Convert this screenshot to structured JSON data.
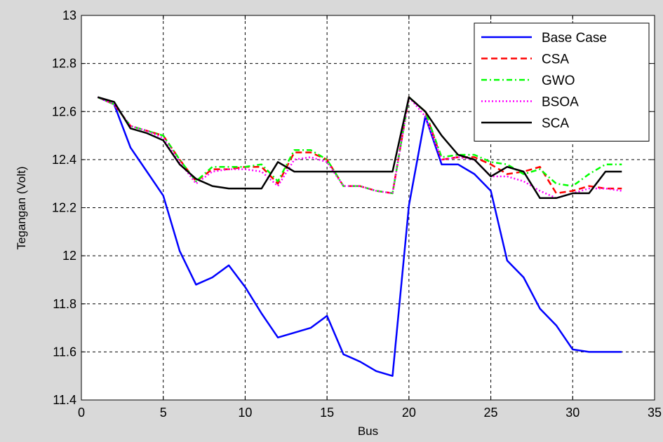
{
  "chart_data": {
    "type": "line",
    "xlabel": "Bus",
    "ylabel": "Tegangan (Volt)",
    "xlim": [
      0,
      35
    ],
    "ylim": [
      11.4,
      13
    ],
    "xticks": [
      0,
      5,
      10,
      15,
      20,
      25,
      30,
      35
    ],
    "yticks": [
      11.4,
      11.6,
      11.8,
      12,
      12.2,
      12.4,
      12.6,
      12.8,
      13
    ],
    "ytick_labels": [
      "11.4",
      "11.6",
      "11.8",
      "12",
      "12.2",
      "12.4",
      "12.6",
      "12.8",
      "13"
    ],
    "grid": true,
    "legend_position": "top-right",
    "x": [
      1,
      2,
      3,
      4,
      5,
      6,
      7,
      8,
      9,
      10,
      11,
      12,
      13,
      14,
      15,
      16,
      17,
      18,
      19,
      20,
      21,
      22,
      23,
      24,
      25,
      26,
      27,
      28,
      29,
      30,
      31,
      32,
      33
    ],
    "series": [
      {
        "name": "Base Case",
        "color": "#0000ff",
        "dash": "solid",
        "values": [
          12.66,
          12.63,
          12.45,
          12.35,
          12.25,
          12.02,
          11.88,
          11.91,
          11.96,
          11.87,
          11.76,
          11.66,
          11.68,
          11.7,
          11.75,
          11.59,
          11.56,
          11.52,
          11.5,
          12.21,
          12.58,
          12.38,
          12.38,
          12.34,
          12.27,
          11.98,
          11.91,
          11.78,
          11.71,
          11.61,
          11.6,
          11.6,
          11.6
        ]
      },
      {
        "name": "CSA",
        "color": "#ff0000",
        "dash": "dashed",
        "values": [
          12.66,
          12.63,
          12.54,
          12.52,
          12.5,
          12.4,
          12.31,
          12.36,
          12.36,
          12.37,
          12.37,
          12.3,
          12.43,
          12.43,
          12.4,
          12.29,
          12.29,
          12.27,
          12.26,
          12.66,
          12.6,
          12.4,
          12.41,
          12.41,
          12.38,
          12.34,
          12.35,
          12.37,
          12.26,
          12.27,
          12.29,
          12.28,
          12.28
        ]
      },
      {
        "name": "GWO",
        "color": "#00ff00",
        "dash": "dashdot",
        "values": [
          12.66,
          12.63,
          12.54,
          12.52,
          12.5,
          12.4,
          12.31,
          12.37,
          12.37,
          12.37,
          12.38,
          12.31,
          12.44,
          12.44,
          12.4,
          12.29,
          12.29,
          12.27,
          12.26,
          12.66,
          12.6,
          12.41,
          12.42,
          12.42,
          12.39,
          12.38,
          12.34,
          12.36,
          12.3,
          12.29,
          12.34,
          12.38,
          12.38
        ]
      },
      {
        "name": "BSOA",
        "color": "#ff00ff",
        "dash": "dotted",
        "values": [
          12.66,
          12.63,
          12.54,
          12.52,
          12.49,
          12.39,
          12.3,
          12.35,
          12.36,
          12.36,
          12.35,
          12.29,
          12.4,
          12.41,
          12.39,
          12.29,
          12.29,
          12.27,
          12.26,
          12.66,
          12.58,
          12.4,
          12.41,
          12.4,
          12.33,
          12.33,
          12.31,
          12.27,
          12.24,
          12.26,
          12.28,
          12.28,
          12.27
        ]
      },
      {
        "name": "SCA",
        "color": "#000000",
        "dash": "solid",
        "values": [
          12.66,
          12.64,
          12.53,
          12.51,
          12.48,
          12.38,
          12.32,
          12.29,
          12.28,
          12.28,
          12.28,
          12.39,
          12.35,
          12.35,
          12.35,
          12.35,
          12.35,
          12.35,
          12.35,
          12.66,
          12.6,
          12.5,
          12.42,
          12.4,
          12.33,
          12.37,
          12.35,
          12.24,
          12.24,
          12.26,
          12.26,
          12.35,
          12.35
        ]
      }
    ]
  }
}
